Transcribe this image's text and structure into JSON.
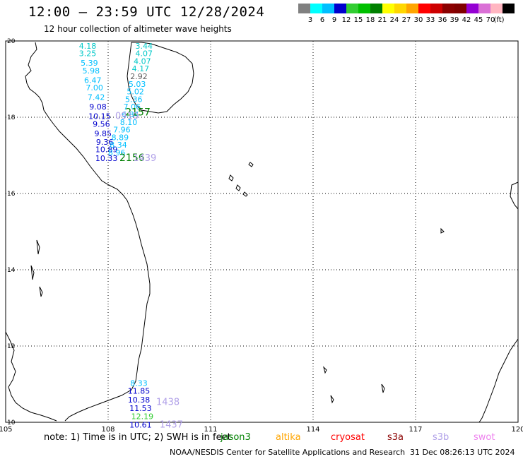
{
  "title": "12:00 – 23:59 UTC 12/28/2024",
  "subtitle": "12 hour collection of altimeter wave heights",
  "colorbar": {
    "labels": [
      "3",
      "6",
      "9",
      "12",
      "15",
      "18",
      "21",
      "24",
      "27",
      "30",
      "33",
      "36",
      "39",
      "42",
      "45",
      "70"
    ],
    "unit": "(ft)",
    "colors": [
      "#808080",
      "#00ffff",
      "#00bfff",
      "#0000cd",
      "#32cd32",
      "#00c000",
      "#008000",
      "#ffff00",
      "#ffd700",
      "#ffa500",
      "#ff0000",
      "#cd0000",
      "#8b0000",
      "#800000",
      "#9400d3",
      "#da70d6",
      "#ffb6c1",
      "#000000"
    ]
  },
  "map": {
    "lon_ticks": [
      "105",
      "108",
      "111",
      "114",
      "117",
      "120"
    ],
    "lat_ticks": [
      "20",
      "18",
      "16",
      "14",
      "12",
      "10"
    ],
    "lon_range": [
      105,
      120
    ],
    "lat_range": [
      10,
      20
    ],
    "grid": true
  },
  "observations": [
    {
      "lon": 107.4,
      "lat": 19.8,
      "value": "4.18",
      "color": "#00c8c8"
    },
    {
      "lon": 107.4,
      "lat": 19.6,
      "value": "3.25",
      "color": "#00c8c8"
    },
    {
      "lon": 107.45,
      "lat": 19.35,
      "value": "5.39",
      "color": "#00bfff"
    },
    {
      "lon": 107.5,
      "lat": 19.15,
      "value": "5.98",
      "color": "#00bfff"
    },
    {
      "lon": 107.55,
      "lat": 18.9,
      "value": "6.47",
      "color": "#00bfff"
    },
    {
      "lon": 107.6,
      "lat": 18.7,
      "value": "7.00",
      "color": "#00bfff"
    },
    {
      "lon": 107.65,
      "lat": 18.45,
      "value": "7.42",
      "color": "#00bfff"
    },
    {
      "lon": 107.7,
      "lat": 18.2,
      "value": "9.08",
      "color": "#0000cd"
    },
    {
      "lon": 107.75,
      "lat": 17.95,
      "value": "10.15",
      "color": "#0000cd"
    },
    {
      "lon": 107.8,
      "lat": 17.75,
      "value": "9.56",
      "color": "#0000cd"
    },
    {
      "lon": 107.85,
      "lat": 17.5,
      "value": "9.85",
      "color": "#0000cd"
    },
    {
      "lon": 107.9,
      "lat": 17.28,
      "value": "9.36",
      "color": "#0000cd"
    },
    {
      "lon": 107.95,
      "lat": 17.08,
      "value": "10.89",
      "color": "#0000cd"
    },
    {
      "lon": 107.95,
      "lat": 16.85,
      "value": "10.33",
      "color": "#0000cd"
    },
    {
      "lon": 109.05,
      "lat": 19.8,
      "value": "3.44",
      "color": "#00c8c8"
    },
    {
      "lon": 109.05,
      "lat": 19.6,
      "value": "4.07",
      "color": "#00c8c8"
    },
    {
      "lon": 109.0,
      "lat": 19.4,
      "value": "4.07",
      "color": "#00c8c8"
    },
    {
      "lon": 108.95,
      "lat": 19.2,
      "value": "4.17",
      "color": "#00c8c8"
    },
    {
      "lon": 108.9,
      "lat": 19.0,
      "value": "2.92",
      "color": "#606060"
    },
    {
      "lon": 108.85,
      "lat": 18.8,
      "value": "5.03",
      "color": "#00bfff"
    },
    {
      "lon": 108.8,
      "lat": 18.6,
      "value": "5.02",
      "color": "#00bfff"
    },
    {
      "lon": 108.75,
      "lat": 18.4,
      "value": "5.36",
      "color": "#00bfff"
    },
    {
      "lon": 108.7,
      "lat": 18.2,
      "value": "7.06",
      "color": "#00bfff"
    },
    {
      "lon": 108.65,
      "lat": 18.0,
      "value": "6.84",
      "color": "#00bfff"
    },
    {
      "lon": 108.6,
      "lat": 17.8,
      "value": "8.10",
      "color": "#00bfff"
    },
    {
      "lon": 108.4,
      "lat": 17.6,
      "value": "7.96",
      "color": "#00bfff"
    },
    {
      "lon": 108.35,
      "lat": 17.4,
      "value": "8.89",
      "color": "#00bfff"
    },
    {
      "lon": 108.3,
      "lat": 17.2,
      "value": "8.34",
      "color": "#00bfff"
    },
    {
      "lon": 108.25,
      "lat": 17.0,
      "value": "8.96",
      "color": "#00bfff"
    },
    {
      "lon": 108.9,
      "lat": 10.95,
      "value": "8.33",
      "color": "#00bfff"
    },
    {
      "lon": 108.9,
      "lat": 10.75,
      "value": "11.85",
      "color": "#0000cd"
    },
    {
      "lon": 108.9,
      "lat": 10.52,
      "value": "10.38",
      "color": "#0000cd"
    },
    {
      "lon": 108.95,
      "lat": 10.3,
      "value": "11.53",
      "color": "#0000cd"
    },
    {
      "lon": 109.0,
      "lat": 10.08,
      "value": "12.19",
      "color": "#32cd32"
    },
    {
      "lon": 108.95,
      "lat": 9.86,
      "value": "10.61",
      "color": "#0000cd"
    }
  ],
  "timestamps": [
    {
      "lon": 108.87,
      "lat": 18.05,
      "value": "2157",
      "color": "#008000",
      "size": 14
    },
    {
      "lon": 108.55,
      "lat": 17.95,
      "value": "0910",
      "color": "#b0a0e8",
      "size": 13
    },
    {
      "lon": 108.7,
      "lat": 16.85,
      "value": "2156",
      "color": "#008000",
      "size": 14
    },
    {
      "lon": 109.07,
      "lat": 16.85,
      "value": "1439",
      "color": "#b0a0e8",
      "size": 13
    },
    {
      "lon": 109.75,
      "lat": 10.45,
      "value": "1438",
      "color": "#b0a0e8",
      "size": 13
    },
    {
      "lon": 109.85,
      "lat": 9.86,
      "value": "1437",
      "color": "#b0a0e8",
      "size": 13
    }
  ],
  "note": "note: 1) Time is in UTC; 2) SWH is in feet",
  "satellites": [
    {
      "name": "jason3",
      "color": "#008000"
    },
    {
      "name": "altika",
      "color": "#ffa500"
    },
    {
      "name": "cryosat",
      "color": "#ff0000"
    },
    {
      "name": "s3a",
      "color": "#8b0000"
    },
    {
      "name": "s3b",
      "color": "#b0a0e8"
    },
    {
      "name": "swot",
      "color": "#ee82ee"
    }
  ],
  "credit": "NOAA/NESDIS Center for Satellite Applications and Research",
  "credit_date": "31 Dec 08:26:13 UTC 2024"
}
